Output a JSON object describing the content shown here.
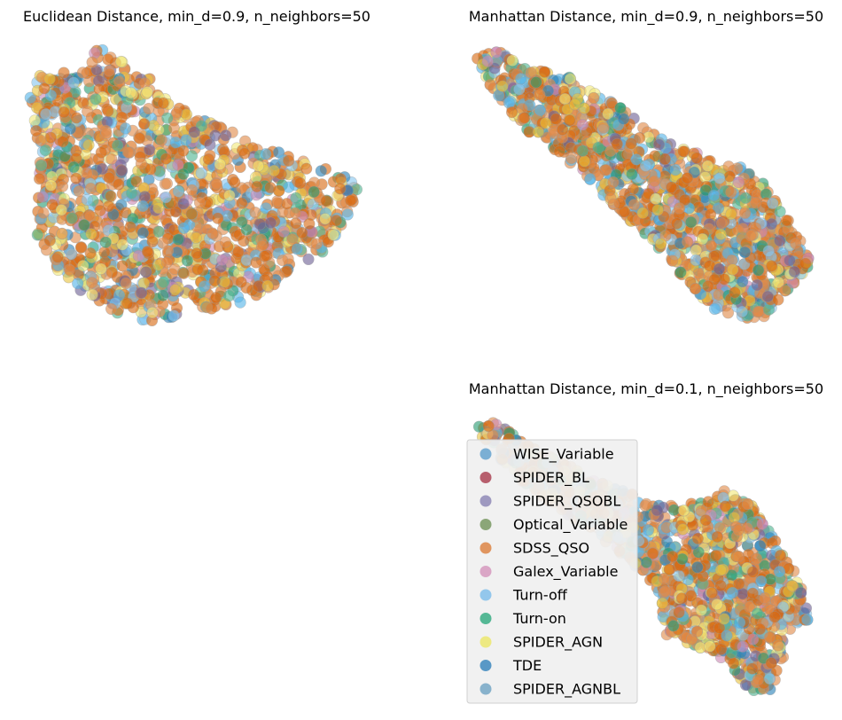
{
  "chart_data": [
    {
      "type": "scatter",
      "title": "Euclidean Distance, min_d=0.9, n_neighbors=50",
      "xlabel": "",
      "ylabel": "",
      "axes_visible": false,
      "grid": false,
      "shape": [
        [
          0.0,
          7.4
        ],
        [
          0.1,
          7.9
        ],
        [
          0.9,
          8.0
        ],
        [
          1.6,
          8.0
        ],
        [
          1.9,
          8.7
        ],
        [
          2.3,
          8.6
        ],
        [
          3.0,
          8.0
        ],
        [
          3.6,
          7.8
        ],
        [
          4.1,
          7.2
        ],
        [
          5.3,
          6.7
        ],
        [
          6.6,
          6.0
        ],
        [
          8.3,
          5.5
        ],
        [
          9.4,
          5.1
        ],
        [
          9.6,
          4.6
        ],
        [
          8.6,
          3.2
        ],
        [
          7.4,
          2.4
        ],
        [
          6.2,
          1.7
        ],
        [
          4.8,
          1.5
        ],
        [
          3.6,
          1.2
        ],
        [
          2.6,
          1.4
        ],
        [
          1.6,
          1.9
        ],
        [
          0.7,
          2.7
        ],
        [
          0.2,
          3.6
        ],
        [
          0.3,
          5.5
        ]
      ],
      "n_points": 1500,
      "xlim": [
        -0.3,
        9.9
      ],
      "ylim": [
        1.0,
        8.9
      ]
    },
    {
      "type": "scatter",
      "title": "Manhattan Distance, min_d=0.9, n_neighbors=50",
      "xlabel": "",
      "ylabel": "",
      "axes_visible": false,
      "grid": false,
      "shape": [
        [
          0.0,
          9.3
        ],
        [
          0.5,
          9.6
        ],
        [
          1.5,
          9.0
        ],
        [
          2.8,
          8.7
        ],
        [
          4.2,
          7.8
        ],
        [
          5.6,
          6.7
        ],
        [
          7.0,
          6.2
        ],
        [
          8.2,
          5.8
        ],
        [
          9.0,
          4.6
        ],
        [
          9.6,
          3.6
        ],
        [
          9.9,
          2.8
        ],
        [
          9.4,
          2.3
        ],
        [
          8.4,
          1.2
        ],
        [
          7.1,
          1.4
        ],
        [
          6.2,
          2.4
        ],
        [
          5.2,
          3.6
        ],
        [
          4.0,
          4.8
        ],
        [
          2.6,
          6.2
        ],
        [
          1.3,
          7.2
        ],
        [
          0.3,
          8.6
        ]
      ],
      "n_points": 1500,
      "xlim": [
        -0.3,
        10.2
      ],
      "ylim": [
        0.9,
        9.9
      ]
    },
    {
      "type": "scatter",
      "title": "Manhattan Distance, min_d=0.1, n_neighbors=50",
      "xlabel": "",
      "ylabel": "",
      "axes_visible": false,
      "grid": false,
      "shape": [
        [
          0.0,
          9.1
        ],
        [
          0.5,
          9.2
        ],
        [
          1.6,
          8.4
        ],
        [
          3.0,
          7.7
        ],
        [
          4.4,
          7.0
        ],
        [
          5.6,
          6.6
        ],
        [
          6.7,
          6.7
        ],
        [
          7.3,
          7.1
        ],
        [
          8.0,
          6.7
        ],
        [
          8.6,
          5.8
        ],
        [
          9.3,
          4.6
        ],
        [
          9.8,
          3.6
        ],
        [
          9.7,
          3.0
        ],
        [
          9.0,
          2.7
        ],
        [
          9.0,
          1.7
        ],
        [
          8.6,
          0.9
        ],
        [
          8.0,
          0.9
        ],
        [
          7.4,
          1.8
        ],
        [
          6.4,
          2.3
        ],
        [
          5.4,
          2.6
        ],
        [
          5.4,
          3.8
        ],
        [
          4.6,
          4.8
        ],
        [
          3.4,
          5.8
        ],
        [
          2.0,
          6.8
        ],
        [
          1.0,
          7.6
        ],
        [
          0.2,
          8.6
        ]
      ],
      "n_points": 1500,
      "xlim": [
        -0.3,
        10.1
      ],
      "ylim": [
        0.6,
        9.5
      ]
    }
  ],
  "legend": {
    "location": "bottom-left of bottom-right panel",
    "entries": [
      {
        "label": "WISE_Variable",
        "color": "#7bafd4"
      },
      {
        "label": "SPIDER_BL",
        "color": "#b75f6d"
      },
      {
        "label": "SPIDER_QSOBL",
        "color": "#9e99c0"
      },
      {
        "label": "Optical_Variable",
        "color": "#8ba678"
      },
      {
        "label": "SDSS_QSO",
        "color": "#e0955f"
      },
      {
        "label": "Galex_Variable",
        "color": "#daa6c6"
      },
      {
        "label": "Turn-off",
        "color": "#93c7ec"
      },
      {
        "label": "Turn-on",
        "color": "#55b895"
      },
      {
        "label": "SPIDER_AGN",
        "color": "#ede982"
      },
      {
        "label": "TDE",
        "color": "#5898c6"
      },
      {
        "label": "SPIDER_AGNBL",
        "color": "#88b2cc"
      }
    ]
  },
  "colors": {
    "dot_palette": [
      "#d96b14",
      "#e08a4a",
      "#e8c340",
      "#f2e87a",
      "#56b4e9",
      "#87c6ef",
      "#2a9d73",
      "#4fb592",
      "#6f6396",
      "#cc89b4",
      "#2c82b8"
    ],
    "dot_stroke": "#9a9a9a",
    "legend_background": "#f0f0f0",
    "legend_border": "#d0d0d0"
  }
}
